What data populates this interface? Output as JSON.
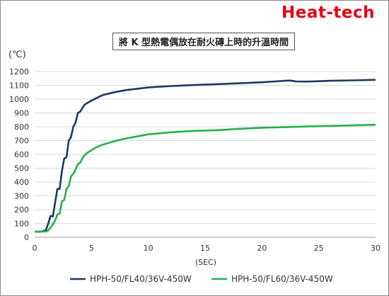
{
  "brand": "Heat-tech",
  "chart_data": {
    "type": "line",
    "title": "將 K 型熱電偶放在耐火磚上時的升溫時間",
    "ylabel": "(℃)",
    "xlabel": "(SEC)",
    "xlim": [
      0,
      30
    ],
    "ylim": [
      0,
      1200
    ],
    "x_ticks": [
      "0",
      "5",
      "10",
      "15",
      "20",
      "25",
      "30"
    ],
    "y_ticks": [
      "0",
      "100",
      "200",
      "300",
      "400",
      "500",
      "600",
      "700",
      "800",
      "900",
      "1000",
      "1100",
      "1200"
    ],
    "grid": "horizontal",
    "legend_position": "bottom",
    "series": [
      {
        "name": "HPH-50/FL40/36V-450W",
        "color": "#1f3864",
        "points": [
          [
            0,
            40
          ],
          [
            0.5,
            40
          ],
          [
            0.8,
            45
          ],
          [
            1.0,
            55
          ],
          [
            1.2,
            100
          ],
          [
            1.4,
            155
          ],
          [
            1.6,
            150
          ],
          [
            1.8,
            250
          ],
          [
            2.0,
            350
          ],
          [
            2.2,
            350
          ],
          [
            2.4,
            480
          ],
          [
            2.6,
            570
          ],
          [
            2.8,
            580
          ],
          [
            3.0,
            700
          ],
          [
            3.2,
            725
          ],
          [
            3.4,
            800
          ],
          [
            3.6,
            830
          ],
          [
            3.8,
            900
          ],
          [
            4.0,
            910
          ],
          [
            4.2,
            935
          ],
          [
            4.4,
            960
          ],
          [
            4.6,
            970
          ],
          [
            5.0,
            990
          ],
          [
            5.5,
            1010
          ],
          [
            6.0,
            1030
          ],
          [
            7.0,
            1050
          ],
          [
            8.0,
            1065
          ],
          [
            9.0,
            1075
          ],
          [
            10.0,
            1085
          ],
          [
            12.0,
            1095
          ],
          [
            14.0,
            1102
          ],
          [
            16.0,
            1108
          ],
          [
            18.0,
            1115
          ],
          [
            20.0,
            1122
          ],
          [
            22.0,
            1133
          ],
          [
            22.5,
            1135
          ],
          [
            23.0,
            1128
          ],
          [
            24.0,
            1127
          ],
          [
            25.0,
            1130
          ],
          [
            26.0,
            1133
          ],
          [
            28.0,
            1136
          ],
          [
            30.0,
            1140
          ]
        ]
      },
      {
        "name": "HPH-50/FL60/36V-450W",
        "color": "#22b14c",
        "points": [
          [
            0,
            40
          ],
          [
            1.0,
            42
          ],
          [
            1.2,
            50
          ],
          [
            1.5,
            80
          ],
          [
            1.8,
            120
          ],
          [
            2.0,
            165
          ],
          [
            2.2,
            170
          ],
          [
            2.4,
            260
          ],
          [
            2.6,
            270
          ],
          [
            2.8,
            350
          ],
          [
            3.0,
            370
          ],
          [
            3.2,
            440
          ],
          [
            3.5,
            470
          ],
          [
            3.8,
            530
          ],
          [
            4.0,
            540
          ],
          [
            4.3,
            585
          ],
          [
            4.6,
            610
          ],
          [
            5.0,
            630
          ],
          [
            5.5,
            655
          ],
          [
            6.0,
            670
          ],
          [
            7.0,
            695
          ],
          [
            8.0,
            715
          ],
          [
            9.0,
            730
          ],
          [
            10.0,
            745
          ],
          [
            12.0,
            760
          ],
          [
            14.0,
            770
          ],
          [
            16.0,
            775
          ],
          [
            18.0,
            785
          ],
          [
            20.0,
            793
          ],
          [
            22.0,
            797
          ],
          [
            24.0,
            802
          ],
          [
            26.0,
            806
          ],
          [
            28.0,
            810
          ],
          [
            30.0,
            815
          ]
        ]
      }
    ]
  }
}
